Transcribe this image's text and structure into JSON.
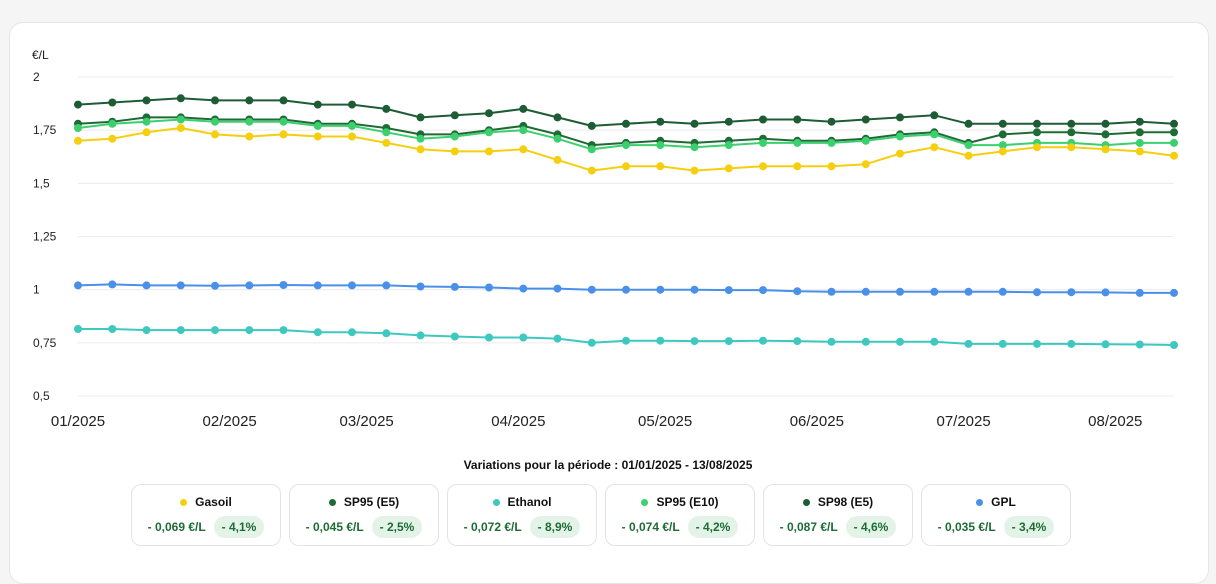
{
  "chart_data": {
    "type": "line",
    "unit_label": "€/L",
    "y_ticks": [
      "2",
      "1,75",
      "1,5",
      "1,25",
      "1",
      "0,75",
      "0,5"
    ],
    "ylim": [
      0.5,
      2
    ],
    "x_tick_labels": [
      "01/2025",
      "02/2025",
      "03/2025",
      "04/2025",
      "05/2025",
      "06/2025",
      "07/2025",
      "08/2025"
    ],
    "grid": "horizontal",
    "x": [
      "2025-01-01",
      "2025-01-08",
      "2025-01-15",
      "2025-01-22",
      "2025-01-29",
      "2025-02-05",
      "2025-02-12",
      "2025-02-19",
      "2025-02-26",
      "2025-03-05",
      "2025-03-12",
      "2025-03-19",
      "2025-03-26",
      "2025-04-02",
      "2025-04-09",
      "2025-04-16",
      "2025-04-23",
      "2025-04-30",
      "2025-05-07",
      "2025-05-14",
      "2025-05-21",
      "2025-05-28",
      "2025-06-04",
      "2025-06-11",
      "2025-06-18",
      "2025-06-25",
      "2025-07-02",
      "2025-07-09",
      "2025-07-16",
      "2025-07-23",
      "2025-07-30",
      "2025-08-06",
      "2025-08-13"
    ],
    "series": [
      {
        "name": "SP98 (E5)",
        "color": "#1d5c35",
        "values": [
          1.87,
          1.88,
          1.89,
          1.9,
          1.89,
          1.89,
          1.89,
          1.87,
          1.87,
          1.85,
          1.81,
          1.82,
          1.83,
          1.85,
          1.81,
          1.77,
          1.78,
          1.79,
          1.78,
          1.79,
          1.8,
          1.8,
          1.79,
          1.8,
          1.81,
          1.82,
          1.78,
          1.78,
          1.78,
          1.78,
          1.78,
          1.79,
          1.78
        ]
      },
      {
        "name": "SP95 (E5)",
        "color": "#1e6b35",
        "values": [
          1.78,
          1.79,
          1.81,
          1.81,
          1.8,
          1.8,
          1.8,
          1.78,
          1.78,
          1.76,
          1.73,
          1.73,
          1.75,
          1.77,
          1.73,
          1.68,
          1.69,
          1.7,
          1.69,
          1.7,
          1.71,
          1.7,
          1.7,
          1.71,
          1.73,
          1.74,
          1.69,
          1.73,
          1.74,
          1.74,
          1.73,
          1.74,
          1.74
        ]
      },
      {
        "name": "SP95 (E10)",
        "color": "#3ccf6e",
        "values": [
          1.76,
          1.78,
          1.79,
          1.8,
          1.79,
          1.79,
          1.79,
          1.77,
          1.77,
          1.74,
          1.71,
          1.72,
          1.74,
          1.75,
          1.71,
          1.66,
          1.68,
          1.68,
          1.67,
          1.68,
          1.69,
          1.69,
          1.69,
          1.7,
          1.72,
          1.73,
          1.68,
          1.68,
          1.69,
          1.69,
          1.68,
          1.69,
          1.69
        ]
      },
      {
        "name": "Gasoil",
        "color": "#f5cf0f",
        "values": [
          1.7,
          1.71,
          1.74,
          1.76,
          1.73,
          1.72,
          1.73,
          1.72,
          1.72,
          1.69,
          1.66,
          1.65,
          1.65,
          1.66,
          1.61,
          1.56,
          1.58,
          1.58,
          1.56,
          1.57,
          1.58,
          1.58,
          1.58,
          1.59,
          1.64,
          1.67,
          1.63,
          1.65,
          1.67,
          1.67,
          1.66,
          1.65,
          1.63
        ]
      },
      {
        "name": "GPL",
        "color": "#4a90e8",
        "values": [
          1.02,
          1.025,
          1.02,
          1.02,
          1.018,
          1.02,
          1.022,
          1.02,
          1.02,
          1.02,
          1.015,
          1.013,
          1.01,
          1.005,
          1.005,
          1.0,
          1.0,
          1.0,
          1.0,
          0.998,
          0.998,
          0.993,
          0.99,
          0.99,
          0.99,
          0.99,
          0.99,
          0.99,
          0.988,
          0.988,
          0.987,
          0.985,
          0.985
        ]
      },
      {
        "name": "Ethanol",
        "color": "#3ec8c0",
        "values": [
          0.815,
          0.815,
          0.81,
          0.81,
          0.81,
          0.81,
          0.81,
          0.8,
          0.8,
          0.795,
          0.785,
          0.78,
          0.775,
          0.775,
          0.77,
          0.75,
          0.76,
          0.76,
          0.758,
          0.758,
          0.76,
          0.758,
          0.755,
          0.755,
          0.755,
          0.755,
          0.745,
          0.745,
          0.745,
          0.745,
          0.743,
          0.742,
          0.74
        ]
      }
    ]
  },
  "period": {
    "text": "Variations pour la période : 01/01/2025 - 13/08/2025"
  },
  "legend_cards": [
    {
      "name": "Gasoil",
      "color": "#f5cf0f",
      "delta": "- 0,069 €/L",
      "pct": "- 4,1%"
    },
    {
      "name": "SP95 (E5)",
      "color": "#1e6b35",
      "delta": "- 0,045 €/L",
      "pct": "- 2,5%"
    },
    {
      "name": "Ethanol",
      "color": "#3ec8c0",
      "delta": "- 0,072 €/L",
      "pct": "- 8,9%"
    },
    {
      "name": "SP95 (E10)",
      "color": "#3ccf6e",
      "delta": "- 0,074 €/L",
      "pct": "- 4,2%"
    },
    {
      "name": "SP98 (E5)",
      "color": "#1d5c35",
      "delta": "- 0,087 €/L",
      "pct": "- 4,6%"
    },
    {
      "name": "GPL",
      "color": "#4a90e8",
      "delta": "- 0,035 €/L",
      "pct": "- 3,4%"
    }
  ]
}
